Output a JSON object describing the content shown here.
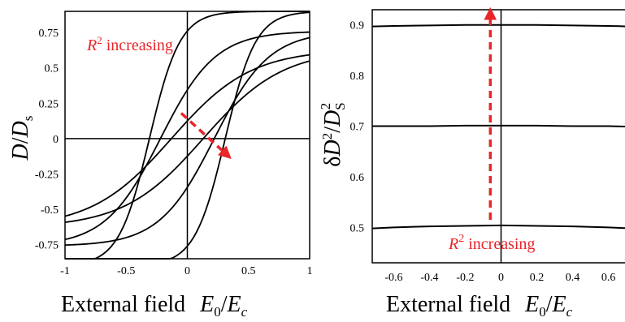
{
  "chart_data": [
    {
      "type": "line",
      "xlabel": "External field",
      "xlabel_symbol": {
        "num": "E",
        "num_sub": "0",
        "den": "E",
        "den_sub": "c"
      },
      "ylabel_symbol": {
        "num": "D",
        "den": "D",
        "den_sub": "s"
      },
      "xlim": [
        -1,
        1
      ],
      "ylim": [
        -0.85,
        0.9
      ],
      "x_ticks": [
        -1,
        -0.5,
        0,
        0.5,
        1
      ],
      "x_tick_labels": [
        "-1",
        "-0.5",
        "0",
        "0.5",
        "1"
      ],
      "y_ticks": [
        0.75,
        0.5,
        0.25,
        0,
        -0.25,
        -0.5,
        -0.75
      ],
      "y_tick_labels": [
        "0.75",
        "0.5",
        "0.25",
        "0",
        "-0.25",
        "-0.5",
        "-0.75"
      ],
      "grid": false,
      "zero_axes": true,
      "annotation": {
        "text_base": "R",
        "text_sup": "2",
        "text_rest": " increasing"
      },
      "arrow": {
        "from": [
          -0.05,
          0.18
        ],
        "to": [
          0.33,
          -0.12
        ],
        "style": "dashed"
      },
      "loops": [
        {
          "a": 0.63,
          "s": 0.26,
          "k": 0.65
        },
        {
          "a": 0.76,
          "s": 0.44,
          "k": 0.45
        },
        {
          "a": 0.9,
          "s": 0.62,
          "k": 0.25
        }
      ],
      "colors": {
        "curve": "#000000",
        "annotation": "#e8262a"
      }
    },
    {
      "type": "line",
      "xlabel": "External field",
      "xlabel_symbol": {
        "num": "E",
        "num_sub": "0",
        "den": "E",
        "den_sub": "c"
      },
      "ylabel_symbol": {
        "prefix": "δ",
        "num": "D",
        "num_sup": "2",
        "den": "D",
        "den_sub": "S",
        "den_sup": "2"
      },
      "xlim": [
        -0.72,
        0.72
      ],
      "ylim": [
        0.43,
        0.93
      ],
      "x_ticks": [
        -0.6,
        -0.4,
        -0.2,
        0,
        0.2,
        0.4,
        0.6
      ],
      "x_tick_labels": [
        "-0.6",
        "-0.4",
        "-0.2",
        "0",
        "0.2",
        "0.4",
        "0.6"
      ],
      "y_ticks": [
        0.9,
        0.8,
        0.7,
        0.6,
        0.5
      ],
      "y_tick_labels": [
        "0.9",
        "0.8",
        "0.7",
        "0.6",
        "0.5"
      ],
      "grid": false,
      "zero_axes": true,
      "annotation": {
        "text_base": "R",
        "text_sup": "2",
        "text_rest": " increasing"
      },
      "arrow": {
        "from": [
          -0.06,
          0.515
        ],
        "to": [
          -0.06,
          0.925
        ],
        "style": "dashed"
      },
      "series": [
        {
          "x": [
            -0.72,
            -0.6,
            -0.4,
            -0.2,
            0,
            0.2,
            0.4,
            0.6,
            0.72
          ],
          "y": [
            0.897,
            0.898,
            0.899,
            0.9,
            0.9,
            0.9,
            0.899,
            0.898,
            0.897
          ]
        },
        {
          "x": [
            -0.72,
            -0.6,
            -0.4,
            -0.2,
            0,
            0.2,
            0.4,
            0.6,
            0.72
          ],
          "y": [
            0.7,
            0.7,
            0.7,
            0.701,
            0.701,
            0.701,
            0.7,
            0.7,
            0.699
          ]
        },
        {
          "x": [
            -0.72,
            -0.6,
            -0.4,
            -0.2,
            0,
            0.2,
            0.4,
            0.6,
            0.72
          ],
          "y": [
            0.498,
            0.5,
            0.502,
            0.503,
            0.504,
            0.503,
            0.502,
            0.5,
            0.498
          ]
        }
      ],
      "colors": {
        "curve": "#000000",
        "annotation": "#e8262a"
      }
    }
  ]
}
